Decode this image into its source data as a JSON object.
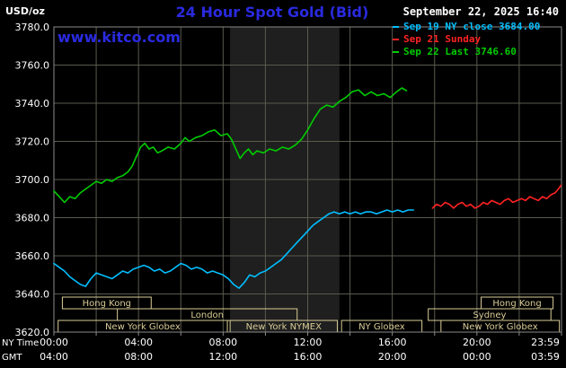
{
  "header": {
    "units_label": "USD/oz",
    "title": "24 Hour Spot Gold (Bid)",
    "datetime": "September 22, 2025 16:40",
    "watermark": "www.kitco.com"
  },
  "colors": {
    "accent_blue": "#2a2ae0",
    "text_white": "#ffffff",
    "grid": "#5a5a4e",
    "border": "#8a8a8a",
    "session_khaki": "#d8cc96",
    "band": "#1f1f1f",
    "cyan": "#00bfff",
    "red": "#ff2222",
    "green": "#00cc00"
  },
  "legend": {
    "items": [
      {
        "label": "Sep 19 NY close 3684.00",
        "color": "#00bfff"
      },
      {
        "label": "Sep 21 Sunday",
        "color": "#ff2222"
      },
      {
        "label": "Sep 22 Last 3746.60",
        "color": "#00cc00"
      }
    ]
  },
  "axes": {
    "ny_label": "NY Time",
    "gmt_label": "GMT",
    "y_ticks": [
      {
        "value": 3780,
        "label": "3780.0"
      },
      {
        "value": 3760,
        "label": "3760.0"
      },
      {
        "value": 3740,
        "label": "3740.0"
      },
      {
        "value": 3720,
        "label": "3720.0"
      },
      {
        "value": 3700,
        "label": "3700.0"
      },
      {
        "value": 3680,
        "label": "3680.0"
      },
      {
        "value": 3660,
        "label": "3660.0"
      },
      {
        "value": 3640,
        "label": "3640.0"
      },
      {
        "value": 3620,
        "label": "3620.0"
      }
    ],
    "x_ticks": [
      {
        "hour": 0,
        "ny": "00:00",
        "gmt": "04:00"
      },
      {
        "hour": 4,
        "ny": "04:00",
        "gmt": "08:00"
      },
      {
        "hour": 8,
        "ny": "08:00",
        "gmt": "12:00"
      },
      {
        "hour": 12,
        "ny": "12:00",
        "gmt": "16:00"
      },
      {
        "hour": 16,
        "ny": "16:00",
        "gmt": "20:00"
      },
      {
        "hour": 20,
        "ny": "20:00",
        "gmt": "00:00"
      },
      {
        "hour": 23.983,
        "ny": "23:59",
        "gmt": "03:59"
      }
    ]
  },
  "sessions": [
    {
      "label": "Hong Kong",
      "row": 0,
      "start": 0.4,
      "end": 4.6
    },
    {
      "label": "Hong Kong",
      "row": 0,
      "start": 20.2,
      "end": 23.6
    },
    {
      "label": "London",
      "row": 1,
      "start": 3.0,
      "end": 11.5
    },
    {
      "label": "Sydney",
      "row": 1,
      "start": 17.7,
      "end": 23.5
    },
    {
      "label": "New York Globex",
      "row": 2,
      "start": 0.2,
      "end": 8.2
    },
    {
      "label": "New York NYMEX",
      "row": 2,
      "start": 8.33,
      "end": 13.4
    },
    {
      "label": "NY Globex",
      "row": 2,
      "start": 13.6,
      "end": 17.4
    },
    {
      "label": "New York Globex",
      "row": 2,
      "start": 18.3,
      "end": 23.9
    }
  ],
  "chart_data": {
    "type": "line",
    "title": "24 Hour Spot Gold (Bid)",
    "xlabel": "NY Time (hours)",
    "ylabel": "USD/oz",
    "xlim": [
      0,
      24
    ],
    "ylim": [
      3620,
      3780
    ],
    "grid": {
      "x_step_hours": 2,
      "y_step": 20
    },
    "nymex_band_hours": [
      8.33,
      13.5
    ],
    "series": [
      {
        "name": "Sep 22 Last 3746.60",
        "slug": "sep22-today",
        "color": "#00cc00",
        "points": [
          [
            0,
            3694
          ],
          [
            0.25,
            3691
          ],
          [
            0.5,
            3688
          ],
          [
            0.75,
            3691
          ],
          [
            1,
            3690
          ],
          [
            1.25,
            3693
          ],
          [
            1.5,
            3695
          ],
          [
            1.75,
            3697
          ],
          [
            2,
            3699
          ],
          [
            2.25,
            3698
          ],
          [
            2.5,
            3700
          ],
          [
            2.75,
            3699
          ],
          [
            3,
            3701
          ],
          [
            3.25,
            3702
          ],
          [
            3.5,
            3704
          ],
          [
            3.7,
            3707
          ],
          [
            3.9,
            3712
          ],
          [
            4.1,
            3717
          ],
          [
            4.3,
            3719
          ],
          [
            4.5,
            3716
          ],
          [
            4.7,
            3717
          ],
          [
            4.9,
            3714
          ],
          [
            5.1,
            3715
          ],
          [
            5.4,
            3717
          ],
          [
            5.7,
            3716
          ],
          [
            6,
            3719
          ],
          [
            6.2,
            3722
          ],
          [
            6.4,
            3720
          ],
          [
            6.7,
            3722
          ],
          [
            7,
            3723
          ],
          [
            7.3,
            3725
          ],
          [
            7.6,
            3726
          ],
          [
            7.9,
            3723
          ],
          [
            8.2,
            3724
          ],
          [
            8.4,
            3721
          ],
          [
            8.6,
            3716
          ],
          [
            8.8,
            3711
          ],
          [
            9,
            3714
          ],
          [
            9.2,
            3716
          ],
          [
            9.4,
            3713
          ],
          [
            9.6,
            3715
          ],
          [
            9.9,
            3714
          ],
          [
            10.2,
            3716
          ],
          [
            10.5,
            3715
          ],
          [
            10.8,
            3717
          ],
          [
            11.1,
            3716
          ],
          [
            11.4,
            3718
          ],
          [
            11.7,
            3721
          ],
          [
            12,
            3726
          ],
          [
            12.3,
            3732
          ],
          [
            12.6,
            3737
          ],
          [
            12.9,
            3739
          ],
          [
            13.2,
            3738
          ],
          [
            13.5,
            3741
          ],
          [
            13.8,
            3743
          ],
          [
            14.1,
            3746
          ],
          [
            14.4,
            3747
          ],
          [
            14.7,
            3744
          ],
          [
            15,
            3746
          ],
          [
            15.3,
            3744
          ],
          [
            15.6,
            3745
          ],
          [
            15.9,
            3743
          ],
          [
            16.2,
            3746
          ],
          [
            16.45,
            3748
          ],
          [
            16.67,
            3746.6
          ]
        ]
      },
      {
        "name": "Sep 19 NY close 3684.00",
        "slug": "sep19-ny-close",
        "color": "#00bfff",
        "points": [
          [
            0,
            3656
          ],
          [
            0.25,
            3654
          ],
          [
            0.5,
            3652
          ],
          [
            0.75,
            3649
          ],
          [
            1,
            3647
          ],
          [
            1.25,
            3645
          ],
          [
            1.5,
            3644
          ],
          [
            1.75,
            3648
          ],
          [
            2,
            3651
          ],
          [
            2.25,
            3650
          ],
          [
            2.5,
            3649
          ],
          [
            2.75,
            3648
          ],
          [
            3,
            3650
          ],
          [
            3.25,
            3652
          ],
          [
            3.5,
            3651
          ],
          [
            3.75,
            3653
          ],
          [
            4,
            3654
          ],
          [
            4.25,
            3655
          ],
          [
            4.5,
            3654
          ],
          [
            4.75,
            3652
          ],
          [
            5,
            3653
          ],
          [
            5.25,
            3651
          ],
          [
            5.5,
            3652
          ],
          [
            5.75,
            3654
          ],
          [
            6,
            3656
          ],
          [
            6.25,
            3655
          ],
          [
            6.5,
            3653
          ],
          [
            6.75,
            3654
          ],
          [
            7,
            3653
          ],
          [
            7.25,
            3651
          ],
          [
            7.5,
            3652
          ],
          [
            7.75,
            3651
          ],
          [
            8,
            3650
          ],
          [
            8.25,
            3648
          ],
          [
            8.5,
            3645
          ],
          [
            8.75,
            3643
          ],
          [
            9,
            3646
          ],
          [
            9.25,
            3650
          ],
          [
            9.5,
            3649
          ],
          [
            9.75,
            3651
          ],
          [
            10,
            3652
          ],
          [
            10.25,
            3654
          ],
          [
            10.5,
            3656
          ],
          [
            10.75,
            3658
          ],
          [
            11,
            3661
          ],
          [
            11.25,
            3664
          ],
          [
            11.5,
            3667
          ],
          [
            11.75,
            3670
          ],
          [
            12,
            3673
          ],
          [
            12.25,
            3676
          ],
          [
            12.5,
            3678
          ],
          [
            12.75,
            3680
          ],
          [
            13,
            3682
          ],
          [
            13.25,
            3683
          ],
          [
            13.5,
            3682
          ],
          [
            13.75,
            3683
          ],
          [
            14,
            3682
          ],
          [
            14.25,
            3683
          ],
          [
            14.5,
            3682
          ],
          [
            14.75,
            3683
          ],
          [
            15,
            3683
          ],
          [
            15.25,
            3682
          ],
          [
            15.5,
            3683
          ],
          [
            15.75,
            3684
          ],
          [
            16,
            3683
          ],
          [
            16.25,
            3684
          ],
          [
            16.5,
            3683
          ],
          [
            16.75,
            3684
          ],
          [
            17,
            3684
          ]
        ]
      },
      {
        "name": "Sep 21 Sunday",
        "slug": "sep21-sunday",
        "color": "#ff2222",
        "points": [
          [
            17.9,
            3685
          ],
          [
            18.1,
            3687
          ],
          [
            18.3,
            3686
          ],
          [
            18.5,
            3688
          ],
          [
            18.7,
            3687
          ],
          [
            18.9,
            3685
          ],
          [
            19.1,
            3687
          ],
          [
            19.3,
            3688
          ],
          [
            19.5,
            3686
          ],
          [
            19.7,
            3687
          ],
          [
            19.9,
            3685
          ],
          [
            20.1,
            3686
          ],
          [
            20.3,
            3688
          ],
          [
            20.5,
            3687
          ],
          [
            20.7,
            3689
          ],
          [
            20.9,
            3688
          ],
          [
            21.1,
            3687
          ],
          [
            21.3,
            3689
          ],
          [
            21.5,
            3690
          ],
          [
            21.7,
            3688
          ],
          [
            21.9,
            3689
          ],
          [
            22.1,
            3690
          ],
          [
            22.3,
            3689
          ],
          [
            22.5,
            3691
          ],
          [
            22.7,
            3690
          ],
          [
            22.9,
            3689
          ],
          [
            23.1,
            3691
          ],
          [
            23.3,
            3690
          ],
          [
            23.5,
            3692
          ],
          [
            23.7,
            3693
          ],
          [
            23.85,
            3695
          ],
          [
            23.98,
            3697
          ]
        ]
      }
    ]
  }
}
